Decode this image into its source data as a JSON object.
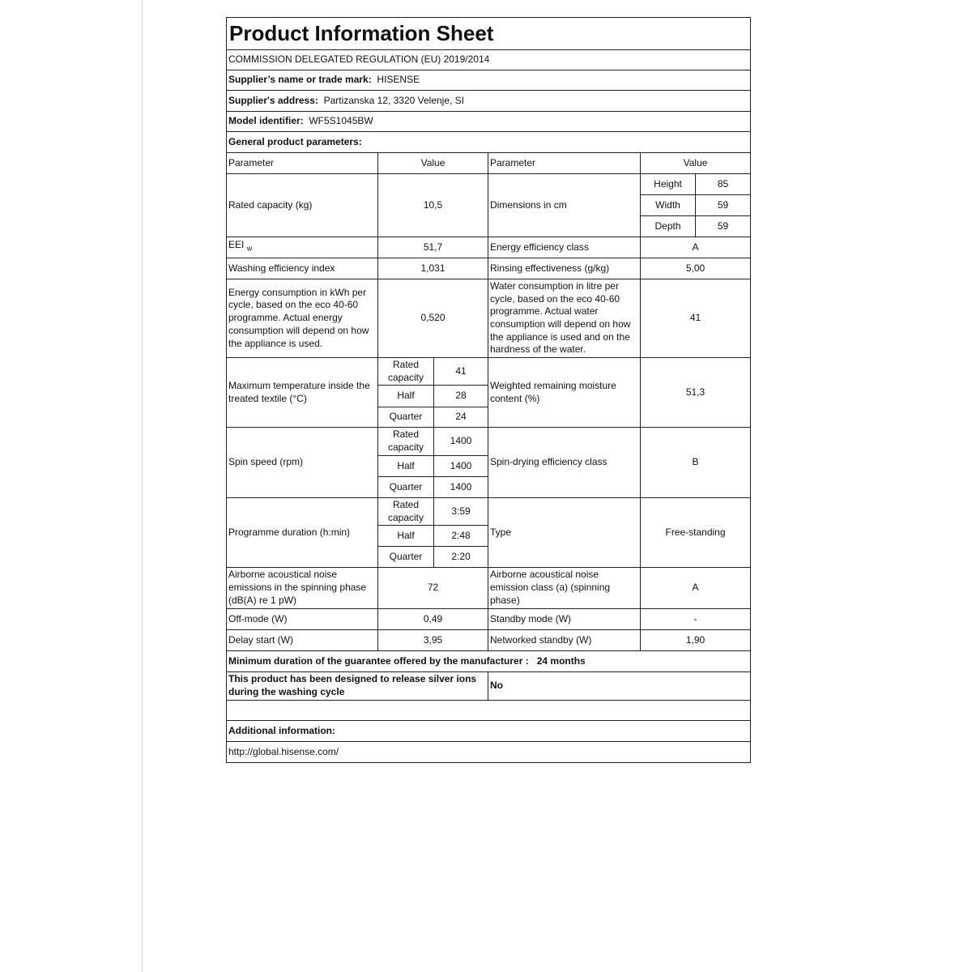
{
  "title": "Product Information Sheet",
  "regulation": "COMMISSION DELEGATED REGULATION (EU) 2019/2014",
  "supplier": {
    "label": "Supplier’s name or trade mark:",
    "value": "HISENSE"
  },
  "address": {
    "label": "Supplier's address:",
    "value": "Partizanska 12, 3320 Velenje, SI"
  },
  "model": {
    "label": "Model identifier:",
    "value": "WF5S1045BW"
  },
  "general_label": "General product parameters:",
  "headers": {
    "parameter": "Parameter",
    "value": "Value"
  },
  "rated_capacity": {
    "label": "Rated capacity (kg)",
    "value": "10,5"
  },
  "dimensions": {
    "label": "Dimensions in cm",
    "height_label": "Height",
    "height": "85",
    "width_label": "Width",
    "width": "59",
    "depth_label": "Depth",
    "depth": "59"
  },
  "eei": {
    "label": "EEI",
    "sub": "W",
    "value": "51,7"
  },
  "energy_class": {
    "label": "Energy efficiency class",
    "value": "A"
  },
  "washing_index": {
    "label": "Washing efficiency index",
    "value": "1,031"
  },
  "rinsing": {
    "label": "Rinsing effectiveness (g/kg)",
    "value": "5,00"
  },
  "energy_consumption": {
    "label": "Energy consumption in kWh per cycle, based on the eco 40-60 programme. Actual energy consumption will depend on how the appliance is used.",
    "value": "0,520"
  },
  "water_consumption": {
    "label": "Water consumption in litre per cycle, based on the eco 40-60 programme. Actual water consumption will depend on how the appliance is used and on the hardness of the water.",
    "value": "41"
  },
  "load_labels": {
    "rated": "Rated capacity",
    "half": "Half",
    "quarter": "Quarter"
  },
  "max_temp": {
    "label": "Maximum temperature inside the treated textile (°C)",
    "rated": "41",
    "half": "28",
    "quarter": "24"
  },
  "moisture": {
    "label": "Weighted remaining moisture content (%)",
    "value": "51,3"
  },
  "spin_speed": {
    "label": "Spin speed (rpm)",
    "rated": "1400",
    "half": "1400",
    "quarter": "1400"
  },
  "spin_class": {
    "label": "Spin-drying efficiency class",
    "value": "B"
  },
  "duration": {
    "label": "Programme duration (h:min)",
    "rated": "3:59",
    "half": "2:48",
    "quarter": "2:20"
  },
  "type": {
    "label": "Type",
    "value": "Free-standing"
  },
  "noise": {
    "label": "Airborne acoustical noise emissions in the spinning phase (dB(A) re 1 pW)",
    "value": "72"
  },
  "noise_class": {
    "label": "Airborne acoustical noise emission class (a) (spinning phase)",
    "value": "A"
  },
  "off_mode": {
    "label": "Off-mode (W)",
    "value": "0,49"
  },
  "standby": {
    "label": "Standby mode (W)",
    "value": "-"
  },
  "delay_start": {
    "label": "Delay start (W)",
    "value": "3,95"
  },
  "networked_standby": {
    "label": "Networked standby (W)",
    "value": "1,90"
  },
  "guarantee": {
    "label": "Minimum duration of the guarantee offered by the manufacturer :",
    "value": "24 months"
  },
  "silver_ions": {
    "label": "This product has been designed to release silver ions during the washing cycle",
    "value": "No"
  },
  "additional_label": "Additional information:",
  "url": "http://global.hisense.com/"
}
